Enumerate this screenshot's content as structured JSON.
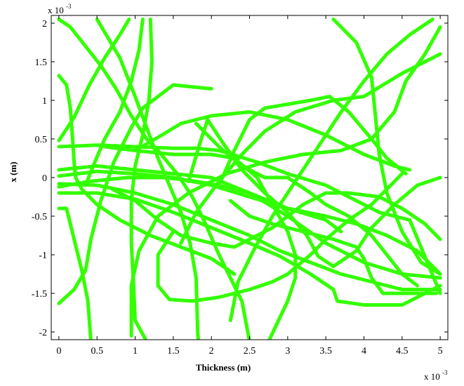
{
  "chart_data": {
    "type": "line",
    "title": "",
    "xlabel": "Thickness (m)",
    "ylabel": "x (m)",
    "x_multiplier": {
      "base": "x 10",
      "exponent": "-3"
    },
    "y_multiplier": {
      "base": "x 10",
      "exponent": "-3"
    },
    "xlim": [
      -0.1,
      5.1
    ],
    "ylim": [
      -2.1,
      2.1
    ],
    "x_ticks": [
      0,
      0.5,
      1,
      1.5,
      2,
      2.5,
      3,
      3.5,
      4,
      4.5,
      5
    ],
    "x_tick_labels": [
      "0",
      "0.5",
      "1",
      "1.5",
      "2",
      "2.5",
      "3",
      "3.5",
      "4",
      "4.5",
      "5"
    ],
    "y_ticks": [
      2,
      1.5,
      1,
      0.5,
      0,
      -0.5,
      -1,
      -1.5,
      -2
    ],
    "y_tick_labels": [
      "2",
      "1.5",
      "1",
      "0.5",
      "0",
      "-0.5",
      "-1",
      "-1.5",
      "-2"
    ],
    "grid": false,
    "line_color": "#33ff00",
    "series": [
      {
        "points": [
          [
            0.42,
            -2.12
          ],
          [
            0.38,
            -1.6
          ],
          [
            0.3,
            -1.2
          ],
          [
            0.2,
            -0.8
          ],
          [
            0.1,
            -0.4
          ],
          [
            0.0,
            -0.4
          ]
        ]
      },
      {
        "points": [
          [
            0.0,
            -1.63
          ],
          [
            0.2,
            -1.45
          ],
          [
            0.35,
            -1.2
          ],
          [
            0.42,
            -0.8
          ],
          [
            0.55,
            -0.3
          ],
          [
            0.72,
            0.2
          ],
          [
            0.95,
            0.65
          ],
          [
            1.1,
            0.9
          ],
          [
            1.5,
            1.2
          ],
          [
            2.0,
            1.15
          ]
        ]
      },
      {
        "points": [
          [
            0.0,
            2.05
          ],
          [
            0.15,
            1.95
          ],
          [
            0.35,
            1.7
          ],
          [
            0.55,
            1.45
          ],
          [
            0.75,
            1.15
          ],
          [
            0.95,
            0.8
          ],
          [
            1.15,
            0.5
          ],
          [
            1.3,
            0.35
          ],
          [
            1.55,
            0.05
          ],
          [
            1.75,
            -0.25
          ],
          [
            1.9,
            -0.55
          ],
          [
            2.1,
            -1.0
          ],
          [
            2.4,
            -1.6
          ],
          [
            2.5,
            -2.12
          ]
        ]
      },
      {
        "points": [
          [
            0.0,
            1.32
          ],
          [
            0.1,
            1.2
          ],
          [
            0.15,
            0.9
          ],
          [
            0.18,
            0.5
          ],
          [
            0.2,
            0.2
          ],
          [
            0.22,
            0.0
          ],
          [
            0.3,
            -0.15
          ],
          [
            0.5,
            -0.35
          ],
          [
            0.8,
            -0.55
          ],
          [
            1.2,
            -0.75
          ],
          [
            1.6,
            -0.9
          ],
          [
            2.0,
            -1.05
          ],
          [
            2.3,
            -1.25
          ]
        ]
      },
      {
        "points": [
          [
            0.0,
            0.48
          ],
          [
            0.2,
            0.78
          ],
          [
            0.4,
            1.2
          ],
          [
            0.6,
            1.55
          ],
          [
            0.8,
            1.85
          ],
          [
            0.92,
            2.05
          ]
        ]
      },
      {
        "points": [
          [
            0.5,
            2.05
          ],
          [
            0.8,
            1.55
          ],
          [
            1.0,
            1.05
          ],
          [
            1.15,
            0.65
          ],
          [
            1.3,
            0.25
          ],
          [
            1.45,
            -0.1
          ],
          [
            1.6,
            -0.45
          ],
          [
            1.72,
            -0.85
          ],
          [
            1.8,
            -1.3
          ],
          [
            1.82,
            -2.0
          ],
          [
            1.83,
            -2.12
          ]
        ]
      },
      {
        "points": [
          [
            1.2,
            2.05
          ],
          [
            1.22,
            1.5
          ],
          [
            1.18,
            1.0
          ],
          [
            1.1,
            0.55
          ],
          [
            1.0,
            0.15
          ],
          [
            0.95,
            -0.3
          ],
          [
            0.95,
            -0.85
          ],
          [
            0.98,
            -1.4
          ],
          [
            1.0,
            -1.85
          ],
          [
            1.15,
            -2.12
          ]
        ]
      },
      {
        "points": [
          [
            1.1,
            2.05
          ],
          [
            1.05,
            1.65
          ],
          [
            0.95,
            1.25
          ],
          [
            0.8,
            0.85
          ],
          [
            0.6,
            0.5
          ],
          [
            0.45,
            0.15
          ],
          [
            0.35,
            -0.1
          ]
        ]
      },
      {
        "points": [
          [
            0.95,
            -2.05
          ],
          [
            0.95,
            -1.4
          ],
          [
            1.05,
            -0.95
          ],
          [
            1.3,
            -0.5
          ],
          [
            1.7,
            -0.2
          ],
          [
            2.2,
            0.05
          ],
          [
            2.7,
            0.2
          ],
          [
            3.2,
            0.3
          ],
          [
            3.7,
            0.35
          ],
          [
            4.1,
            0.5
          ],
          [
            4.4,
            0.85
          ],
          [
            4.55,
            1.25
          ],
          [
            4.8,
            1.6
          ],
          [
            5.0,
            1.95
          ]
        ]
      },
      {
        "points": [
          [
            1.0,
            0.35
          ],
          [
            1.35,
            0.55
          ],
          [
            1.6,
            0.7
          ],
          [
            2.0,
            0.8
          ],
          [
            2.5,
            0.85
          ],
          [
            3.0,
            0.75
          ],
          [
            3.5,
            0.55
          ],
          [
            4.0,
            0.3
          ],
          [
            4.4,
            0.15
          ],
          [
            4.6,
            0.1
          ]
        ]
      },
      {
        "points": [
          [
            1.6,
            -0.85
          ],
          [
            1.8,
            -0.45
          ],
          [
            2.1,
            -0.05
          ],
          [
            2.4,
            0.3
          ],
          [
            2.7,
            0.6
          ],
          [
            3.1,
            0.85
          ],
          [
            3.6,
            1.0
          ],
          [
            4.0,
            1.05
          ],
          [
            4.5,
            1.35
          ],
          [
            4.9,
            1.55
          ],
          [
            5.0,
            1.6
          ]
        ]
      },
      {
        "points": [
          [
            3.6,
            2.05
          ],
          [
            3.9,
            1.75
          ],
          [
            4.1,
            1.3
          ],
          [
            4.15,
            0.8
          ],
          [
            4.2,
            0.3
          ],
          [
            4.3,
            -0.2
          ],
          [
            4.5,
            -0.7
          ],
          [
            4.75,
            -1.1
          ],
          [
            5.0,
            -1.25
          ]
        ]
      },
      {
        "points": [
          [
            4.9,
            2.05
          ],
          [
            4.6,
            1.85
          ],
          [
            4.3,
            1.6
          ],
          [
            4.0,
            1.25
          ],
          [
            3.7,
            0.85
          ],
          [
            3.4,
            0.4
          ],
          [
            3.1,
            -0.05
          ],
          [
            2.8,
            -0.5
          ],
          [
            2.55,
            -0.95
          ],
          [
            2.35,
            -1.35
          ],
          [
            2.25,
            -1.85
          ]
        ]
      },
      {
        "points": [
          [
            0.0,
            0.02
          ],
          [
            0.5,
            0.08
          ],
          [
            1.0,
            0.05
          ],
          [
            1.5,
            0.0
          ],
          [
            2.0,
            -0.1
          ],
          [
            2.5,
            -0.25
          ],
          [
            3.0,
            -0.4
          ],
          [
            3.5,
            -0.5
          ],
          [
            3.9,
            -0.6
          ],
          [
            4.3,
            -0.75
          ],
          [
            4.7,
            -0.95
          ],
          [
            5.0,
            -1.25
          ]
        ]
      },
      {
        "points": [
          [
            0.0,
            0.4
          ],
          [
            0.5,
            0.42
          ],
          [
            1.0,
            0.4
          ],
          [
            1.5,
            0.38
          ],
          [
            1.8,
            0.38
          ],
          [
            2.1,
            0.35
          ],
          [
            2.6,
            0.2
          ],
          [
            3.0,
            0.05
          ],
          [
            3.5,
            -0.1
          ],
          [
            3.9,
            -0.3
          ],
          [
            4.2,
            -0.45
          ],
          [
            4.6,
            -0.55
          ],
          [
            5.0,
            -1.5
          ]
        ]
      },
      {
        "points": [
          [
            0.0,
            -0.08
          ],
          [
            0.5,
            -0.1
          ],
          [
            1.0,
            -0.2
          ],
          [
            1.5,
            -0.35
          ],
          [
            2.0,
            -0.55
          ],
          [
            2.5,
            -0.75
          ],
          [
            2.9,
            -0.95
          ],
          [
            3.3,
            -1.1
          ],
          [
            3.7,
            -1.25
          ],
          [
            4.1,
            -1.35
          ],
          [
            4.5,
            -1.45
          ],
          [
            5.0,
            -1.45
          ]
        ]
      },
      {
        "points": [
          [
            0.0,
            -0.2
          ],
          [
            0.5,
            -0.2
          ],
          [
            1.0,
            -0.28
          ],
          [
            1.5,
            -0.45
          ],
          [
            2.0,
            -0.65
          ],
          [
            2.5,
            -0.85
          ],
          [
            2.9,
            -1.02
          ],
          [
            3.3,
            -1.25
          ],
          [
            3.6,
            -1.45
          ],
          [
            3.65,
            -1.6
          ],
          [
            4.0,
            -1.65
          ],
          [
            4.5,
            -1.65
          ],
          [
            5.0,
            -1.4
          ]
        ]
      },
      {
        "points": [
          [
            0.0,
            0.1
          ],
          [
            0.5,
            0.15
          ],
          [
            1.0,
            0.1
          ],
          [
            1.5,
            0.05
          ],
          [
            2.0,
            0.0
          ],
          [
            2.5,
            -0.2
          ],
          [
            3.0,
            -0.4
          ],
          [
            3.5,
            -0.55
          ],
          [
            3.7,
            -0.7
          ]
        ]
      },
      {
        "points": [
          [
            0.0,
            -0.12
          ],
          [
            0.4,
            -0.05
          ],
          [
            0.9,
            0.0
          ],
          [
            1.4,
            0.0
          ],
          [
            1.8,
            -0.05
          ],
          [
            2.1,
            -0.1
          ],
          [
            2.5,
            -0.2
          ],
          [
            3.0,
            -0.5
          ],
          [
            3.5,
            -0.85
          ],
          [
            4.0,
            -1.1
          ],
          [
            4.5,
            -1.25
          ],
          [
            5.0,
            -1.3
          ]
        ]
      },
      {
        "points": [
          [
            0.6,
            0.4
          ],
          [
            1.0,
            0.35
          ],
          [
            1.5,
            0.3
          ],
          [
            2.0,
            0.3
          ],
          [
            2.3,
            0.25
          ],
          [
            2.6,
            0.0
          ],
          [
            2.8,
            -0.35
          ],
          [
            3.0,
            -0.7
          ],
          [
            3.1,
            -1.0
          ],
          [
            3.1,
            -1.3
          ],
          [
            3.0,
            -1.6
          ],
          [
            2.75,
            -2.12
          ]
        ]
      },
      {
        "points": [
          [
            1.7,
            -0.05
          ],
          [
            1.85,
            0.45
          ],
          [
            1.95,
            0.75
          ],
          [
            2.15,
            0.45
          ],
          [
            2.4,
            0.1
          ],
          [
            2.7,
            -0.2
          ],
          [
            3.0,
            -0.45
          ],
          [
            3.25,
            -0.75
          ],
          [
            3.4,
            -1.02
          ],
          [
            3.6,
            -1.15
          ],
          [
            3.9,
            -0.95
          ],
          [
            4.1,
            -0.65
          ],
          [
            4.4,
            -0.35
          ],
          [
            4.7,
            -0.1
          ],
          [
            5.0,
            0.0
          ]
        ]
      },
      {
        "points": [
          [
            1.8,
            0.7
          ],
          [
            2.1,
            0.4
          ],
          [
            2.4,
            0.15
          ],
          [
            2.7,
            0.0
          ],
          [
            3.0,
            0.0
          ],
          [
            3.3,
            -0.2
          ],
          [
            3.5,
            -0.35
          ],
          [
            3.8,
            -0.5
          ],
          [
            4.1,
            -0.75
          ],
          [
            4.3,
            -1.0
          ],
          [
            4.5,
            -1.25
          ],
          [
            4.7,
            -1.4
          ]
        ]
      },
      {
        "points": [
          [
            1.5,
            -0.7
          ],
          [
            1.3,
            -1.0
          ],
          [
            1.3,
            -1.4
          ],
          [
            1.45,
            -1.58
          ],
          [
            1.75,
            -1.6
          ],
          [
            2.1,
            -1.55
          ],
          [
            2.5,
            -1.45
          ],
          [
            2.8,
            -1.35
          ],
          [
            3.0,
            -1.25
          ],
          [
            3.3,
            -1.0
          ],
          [
            3.5,
            -0.8
          ],
          [
            3.8,
            -0.55
          ],
          [
            4.1,
            -0.35
          ],
          [
            4.3,
            -0.15
          ],
          [
            4.5,
            0.05
          ]
        ]
      },
      {
        "points": [
          [
            2.1,
            -0.1
          ],
          [
            2.3,
            0.35
          ],
          [
            2.5,
            0.75
          ],
          [
            2.7,
            0.9
          ],
          [
            3.0,
            0.95
          ],
          [
            3.3,
            1.0
          ],
          [
            3.55,
            1.05
          ],
          [
            3.8,
            0.85
          ],
          [
            4.1,
            0.5
          ],
          [
            4.3,
            0.25
          ],
          [
            4.55,
            0.05
          ]
        ]
      },
      {
        "points": [
          [
            0.7,
            -0.15
          ],
          [
            1.0,
            -0.3
          ],
          [
            1.3,
            -0.55
          ],
          [
            1.6,
            -0.75
          ],
          [
            2.0,
            -0.85
          ],
          [
            2.3,
            -0.9
          ],
          [
            2.8,
            -0.65
          ],
          [
            3.2,
            -0.35
          ],
          [
            3.5,
            -0.2
          ],
          [
            3.8,
            -0.2
          ],
          [
            4.2,
            -0.25
          ],
          [
            4.5,
            -0.4
          ],
          [
            4.8,
            -0.6
          ],
          [
            5.0,
            -0.8
          ]
        ]
      },
      {
        "points": [
          [
            2.25,
            -0.3
          ],
          [
            2.5,
            -0.5
          ],
          [
            2.8,
            -0.6
          ],
          [
            3.2,
            -0.7
          ],
          [
            3.6,
            -0.8
          ],
          [
            3.9,
            -0.9
          ],
          [
            4.0,
            -1.05
          ],
          [
            4.1,
            -1.3
          ],
          [
            4.25,
            -1.5
          ],
          [
            4.6,
            -1.5
          ],
          [
            4.95,
            -1.5
          ]
        ]
      }
    ]
  }
}
